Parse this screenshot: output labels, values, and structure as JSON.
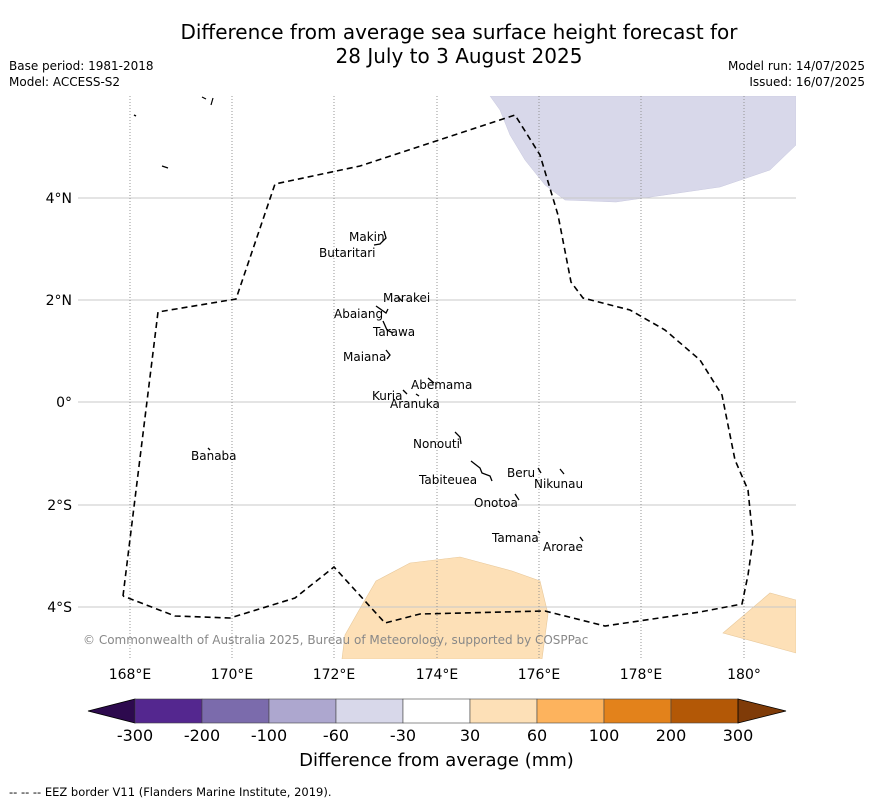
{
  "title": {
    "line1": "Difference from average sea surface height forecast for",
    "line2": "28 July to 3 August 2025"
  },
  "meta_left": {
    "base_period": "Base period: 1981-2018",
    "model": "Model: ACCESS-S2"
  },
  "meta_right": {
    "model_run": "Model run: 14/07/2025",
    "issued": "Issued: 16/07/2025"
  },
  "map": {
    "lon_ticks": [
      "168°E",
      "170°E",
      "172°E",
      "174°E",
      "176°E",
      "178°E",
      "180°"
    ],
    "lat_ticks": [
      "4°N",
      "2°N",
      "0°",
      "2°S",
      "4°S"
    ],
    "copyright": "© Commonwealth of Australia 2025, Bureau of Meteorology, supported by COSPPac",
    "islands": [
      "Makin",
      "Butaritari",
      "Marakei",
      "Abaiang",
      "Tarawa",
      "Maiana",
      "Abemama",
      "Kuria",
      "Aranuka",
      "Banaba",
      "Nonouti",
      "Beru",
      "Nikunau",
      "Tabiteuea",
      "Onotoa",
      "Tamana",
      "Arorae"
    ]
  },
  "colorbar": {
    "tick_labels": [
      "-300",
      "-200",
      "-100",
      "-60",
      "-30",
      "30",
      "60",
      "100",
      "200",
      "300"
    ],
    "colors": [
      "#2d0a4e",
      "#54278f",
      "#7b6bac",
      "#ada7cf",
      "#d8d8ea",
      "#ffffff",
      "#fde0b7",
      "#fdb35d",
      "#e3821b",
      "#b35806",
      "#7f3b08"
    ],
    "label": "Difference from average (mm)"
  },
  "footnote": "--  --  -- EEZ border V11 (Flanders Marine Institute, 2019)."
}
